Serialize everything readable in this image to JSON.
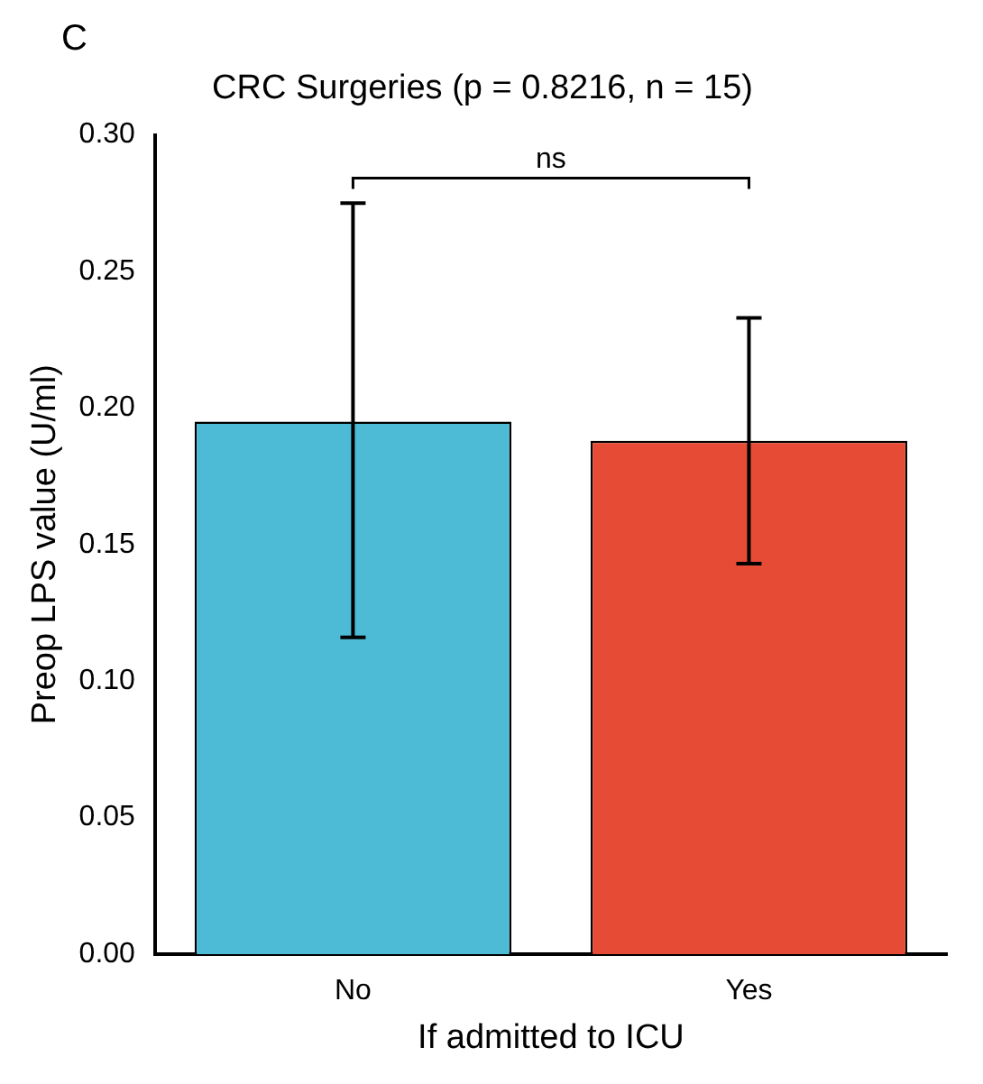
{
  "chart_data": {
    "type": "bar",
    "title": "CRC Surgeries (p = 0.8216, n = 15)",
    "xlabel": "If admitted to ICU",
    "ylabel": "Preop LPS value (U/ml)",
    "categories": [
      "No",
      "Yes"
    ],
    "values": [
      0.195,
      0.188
    ],
    "colors": [
      "#4dbbd5",
      "#e64b35"
    ],
    "errors": [
      [
        0.116,
        0.275
      ],
      [
        0.143,
        0.233
      ]
    ],
    "ylim": [
      0,
      0.3
    ],
    "yticks": [
      {
        "value": 0,
        "label": "0.00"
      },
      {
        "value": 0.05,
        "label": "0.05"
      },
      {
        "value": 0.1,
        "label": "0.10"
      },
      {
        "value": 0.15,
        "label": "0.15"
      },
      {
        "value": 0.2,
        "label": "0.20"
      },
      {
        "value": 0.25,
        "label": "0.25"
      },
      {
        "value": 0.3,
        "label": "0.30"
      }
    ],
    "grid": false,
    "legend": false,
    "annotations": [
      "C",
      "ns"
    ]
  }
}
